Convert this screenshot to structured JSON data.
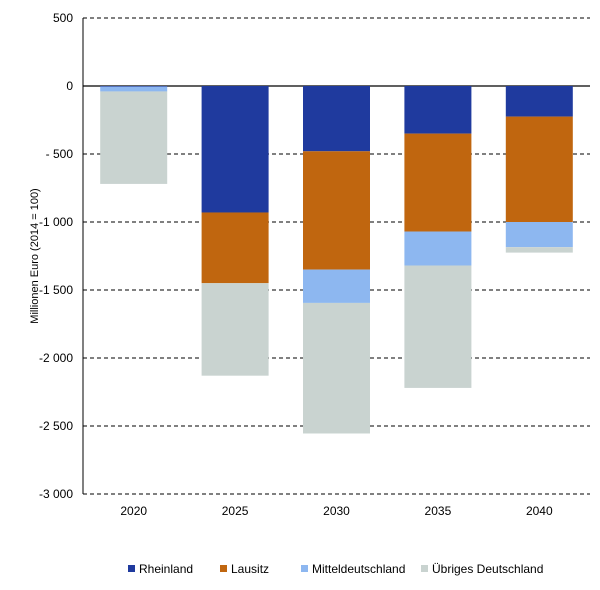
{
  "chart_data": {
    "type": "bar",
    "stacked": true,
    "categories": [
      "2020",
      "2025",
      "2030",
      "2035",
      "2040"
    ],
    "ylabel": "Millionen Euro (2014 = 100)",
    "ylim": [
      -3000,
      500
    ],
    "yticks": [
      500,
      0,
      -500,
      -1000,
      -1500,
      -2000,
      -2500,
      -3000
    ],
    "ytick_labels": [
      "500",
      "0",
      "- 500",
      "-1 000",
      "-1 500",
      "-2 000",
      "-2 500",
      "-3 000"
    ],
    "grid": "horizontal dashed",
    "legend_position": "bottom",
    "series": [
      {
        "name": "Rheinland",
        "color": "#1f3a9e",
        "values": [
          -5,
          -930,
          -480,
          -350,
          -225
        ]
      },
      {
        "name": "Lausitz",
        "color": "#c0660f",
        "values": [
          0,
          -520,
          -870,
          -720,
          -775
        ]
      },
      {
        "name": "Mitteldeutschland",
        "color": "#8db7f0",
        "values": [
          -35,
          0,
          -245,
          -250,
          -185
        ]
      },
      {
        "name": "Übriges Deutschland",
        "color": "#c9d3d0",
        "values": [
          -680,
          -680,
          -960,
          -900,
          -40
        ]
      }
    ]
  }
}
